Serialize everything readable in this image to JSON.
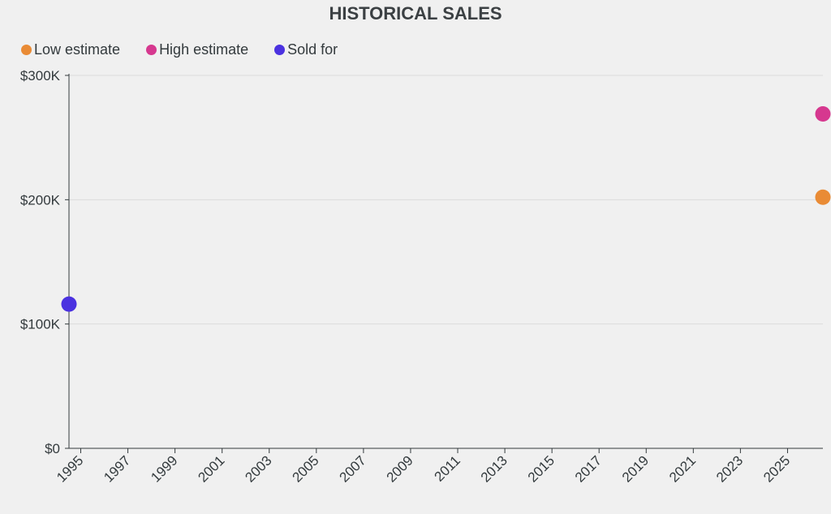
{
  "chart_data": {
    "type": "scatter",
    "title": "HISTORICAL SALES",
    "xlabel": "",
    "ylabel": "",
    "xlim": [
      1994.5,
      2026.5
    ],
    "ylim": [
      0,
      300000
    ],
    "x_ticks": [
      "1995",
      "1997",
      "1999",
      "2001",
      "2003",
      "2005",
      "2007",
      "2009",
      "2011",
      "2013",
      "2015",
      "2017",
      "2019",
      "2021",
      "2023",
      "2025"
    ],
    "y_ticks": [
      {
        "value": 0,
        "label": "$0"
      },
      {
        "value": 100000,
        "label": "$100K"
      },
      {
        "value": 200000,
        "label": "$200K"
      },
      {
        "value": 300000,
        "label": "$300K"
      }
    ],
    "grid": true,
    "legend_position": "top-left",
    "series": [
      {
        "name": "Low estimate",
        "color": "#e98b35",
        "points": [
          {
            "x": 2026.5,
            "y": 202000
          }
        ]
      },
      {
        "name": "High estimate",
        "color": "#d6388f",
        "points": [
          {
            "x": 2026.5,
            "y": 269000
          }
        ]
      },
      {
        "name": "Sold for",
        "color": "#4b32e0",
        "points": [
          {
            "x": 1994.5,
            "y": 116000
          }
        ]
      }
    ]
  }
}
